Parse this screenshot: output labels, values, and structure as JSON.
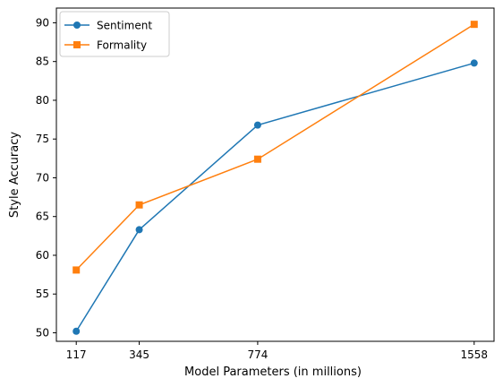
{
  "chart_data": {
    "type": "line",
    "title": "",
    "xlabel": "Model Parameters (in millions)",
    "ylabel": "Style Accuracy",
    "x": [
      117,
      345,
      774,
      1558
    ],
    "x_tick_labels": [
      "117",
      "345",
      "774",
      "1558"
    ],
    "y_ticks": [
      50,
      55,
      60,
      65,
      70,
      75,
      80,
      85,
      90
    ],
    "xlim": [
      45,
      1630
    ],
    "ylim": [
      48.9,
      91.9
    ],
    "grid": false,
    "legend_position": "upper-left",
    "series": [
      {
        "name": "Sentiment",
        "values": [
          50.2,
          63.3,
          76.8,
          84.8
        ],
        "color": "#1f77b4",
        "marker": "circle"
      },
      {
        "name": "Formality",
        "values": [
          58.1,
          66.5,
          72.4,
          89.8
        ],
        "color": "#ff7f0e",
        "marker": "square"
      }
    ]
  }
}
